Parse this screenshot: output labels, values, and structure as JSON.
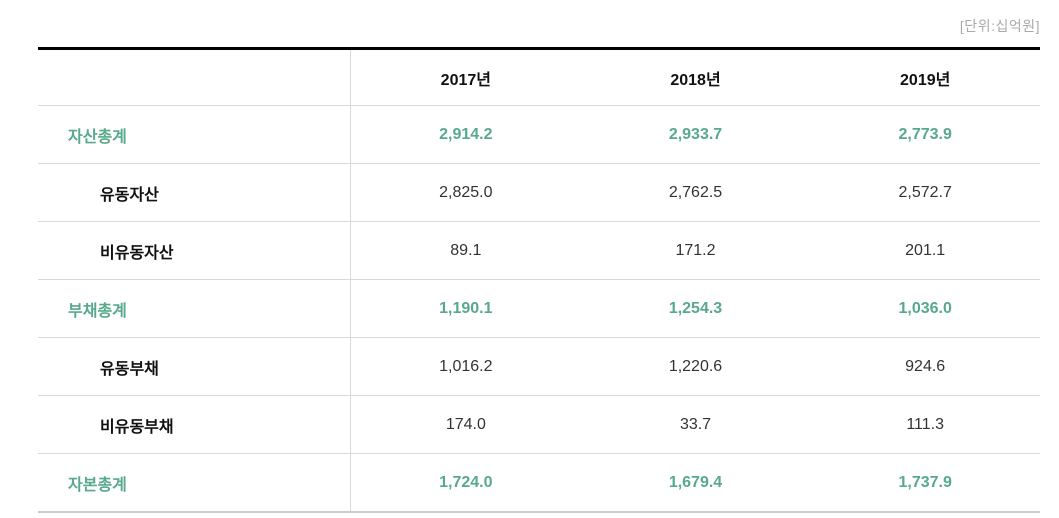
{
  "unit_label": "[단위:십억원]",
  "colors": {
    "accent_green": "#58a98b",
    "text_dark": "#111111",
    "text_value": "#333333",
    "unit_gray": "#aaaaaa",
    "divider_gray": "#d9d9d9",
    "top_border": "#000000"
  },
  "table": {
    "columns": [
      "2017년",
      "2018년",
      "2019년"
    ],
    "rows": [
      {
        "label": "자산총계",
        "type": "total",
        "values": [
          "2,914.2",
          "2,933.7",
          "2,773.9"
        ]
      },
      {
        "label": "유동자산",
        "type": "sub",
        "values": [
          "2,825.0",
          "2,762.5",
          "2,572.7"
        ]
      },
      {
        "label": "비유동자산",
        "type": "sub",
        "values": [
          "89.1",
          "171.2",
          "201.1"
        ]
      },
      {
        "label": "부채총계",
        "type": "total",
        "values": [
          "1,190.1",
          "1,254.3",
          "1,036.0"
        ]
      },
      {
        "label": "유동부채",
        "type": "sub",
        "values": [
          "1,016.2",
          "1,220.6",
          "924.6"
        ]
      },
      {
        "label": "비유동부채",
        "type": "sub",
        "values": [
          "174.0",
          "33.7",
          "111.3"
        ]
      },
      {
        "label": "자본총계",
        "type": "total",
        "values": [
          "1,724.0",
          "1,679.4",
          "1,737.9"
        ]
      }
    ]
  }
}
